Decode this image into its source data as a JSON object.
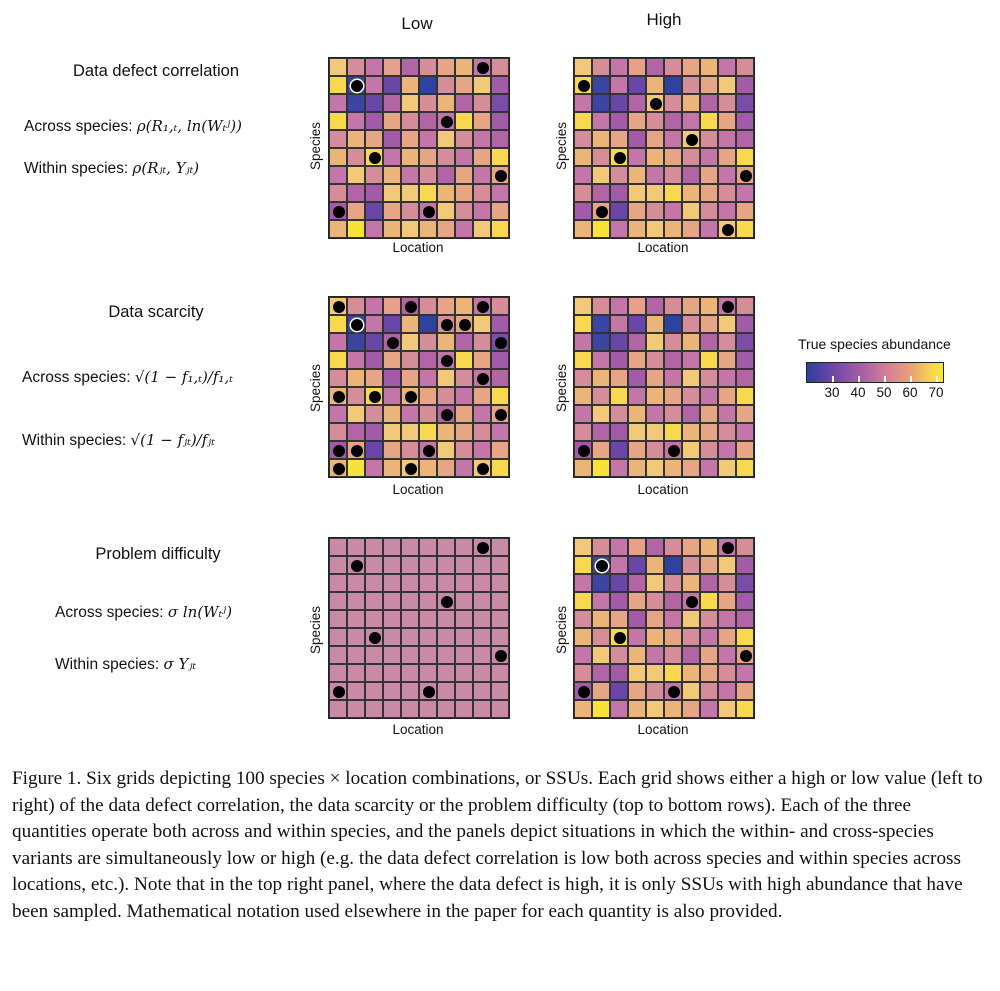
{
  "columns": {
    "low": "Low",
    "high": "High"
  },
  "rows": [
    {
      "title": "Data defect correlation",
      "across_label": "Across species: ",
      "across_math": "ρ(R₁,ₜ, ln(Wₜʲ))",
      "within_label": "Within species: ",
      "within_math": "ρ(Rⱼₜ, Yⱼₜ)"
    },
    {
      "title": "Data scarcity",
      "across_label": "Across species: ",
      "across_math": "√(1 − f₁,ₜ)/f₁,ₜ",
      "within_label": "Within species: ",
      "within_math": "√(1 − fⱼₜ)/fⱼₜ"
    },
    {
      "title": "Problem difficulty",
      "across_label": "Across species: ",
      "across_math": "σ ln(Wₜʲ)",
      "within_label": "Within species: ",
      "within_math": "σ Yⱼₜ"
    }
  ],
  "axis": {
    "x": "Location",
    "y": "Species"
  },
  "legend": {
    "title": "True species abundance",
    "ticks": [
      "30",
      "40",
      "50",
      "60",
      "70"
    ],
    "colors": [
      "#2e3fa0",
      "#6a46a8",
      "#a15ba8",
      "#d57d98",
      "#eda473",
      "#f7d84e"
    ]
  },
  "grids": {
    "base_colors": [
      [
        "#f2c879",
        "#d68d9a",
        "#c576a8",
        "#e59f8b",
        "#b265a4",
        "#d68d9a",
        "#e6a585",
        "#ebb57a",
        "#c576a8",
        "#d68d9a"
      ],
      [
        "#f7d84e",
        "#3b44a3",
        "#c576a8",
        "#6a46a8",
        "#ebb57a",
        "#2f41a1",
        "#d68d9a",
        "#e6a585",
        "#f2c879",
        "#a15ba8"
      ],
      [
        "#c576a8",
        "#3b44a3",
        "#6a46a8",
        "#b265a4",
        "#f2c879",
        "#d68d9a",
        "#ebb57a",
        "#b265a4",
        "#d68d9a",
        "#7b4ca8"
      ],
      [
        "#f7d84e",
        "#c576a8",
        "#a15ba8",
        "#e6a585",
        "#d68d9a",
        "#b265a4",
        "#c576a8",
        "#f7d84e",
        "#e6a585",
        "#a15ba8"
      ],
      [
        "#d68d9a",
        "#ebb57a",
        "#e6a585",
        "#a15ba8",
        "#e6a585",
        "#c576a8",
        "#f2c879",
        "#d68d9a",
        "#c576a8",
        "#b265a4"
      ],
      [
        "#ebb57a",
        "#d68d9a",
        "#f7d84e",
        "#c576a8",
        "#ebb57a",
        "#e6a585",
        "#d68d9a",
        "#c576a8",
        "#e6a585",
        "#f7d84e"
      ],
      [
        "#c576a8",
        "#f2c879",
        "#d68d9a",
        "#ebb57a",
        "#c576a8",
        "#d68d9a",
        "#b265a4",
        "#e6a585",
        "#c576a8",
        "#e6a585"
      ],
      [
        "#d68d9a",
        "#b265a4",
        "#a15ba8",
        "#f2c879",
        "#f2c879",
        "#f7d84e",
        "#ebb57a",
        "#e6a585",
        "#d68d9a",
        "#c576a8"
      ],
      [
        "#a15ba8",
        "#e6a585",
        "#6a46a8",
        "#e6a585",
        "#d68d9a",
        "#c576a8",
        "#f2c879",
        "#d68d9a",
        "#c576a8",
        "#e6a585"
      ],
      [
        "#ebb57a",
        "#f7e23a",
        "#c576a8",
        "#ebb57a",
        "#f2c879",
        "#ebb57a",
        "#e6a585",
        "#c576a8",
        "#f2c879",
        "#f7d84e"
      ]
    ],
    "uniform_color": "#c88aa6",
    "samples": {
      "defect_low": [
        [
          0,
          8
        ],
        [
          1,
          1
        ],
        [
          3,
          6
        ],
        [
          5,
          2
        ],
        [
          6,
          9
        ],
        [
          8,
          0
        ],
        [
          8,
          5
        ]
      ],
      "defect_high": [
        [
          1,
          0
        ],
        [
          2,
          4
        ],
        [
          4,
          6
        ],
        [
          5,
          2
        ],
        [
          6,
          9
        ],
        [
          8,
          1
        ],
        [
          9,
          8
        ]
      ],
      "scarcity_low": [
        [
          0,
          0
        ],
        [
          0,
          4
        ],
        [
          0,
          8
        ],
        [
          1,
          1
        ],
        [
          1,
          6
        ],
        [
          1,
          7
        ],
        [
          2,
          3
        ],
        [
          2,
          9
        ],
        [
          3,
          6
        ],
        [
          4,
          8
        ],
        [
          5,
          0
        ],
        [
          5,
          2
        ],
        [
          5,
          4
        ],
        [
          6,
          6
        ],
        [
          6,
          9
        ],
        [
          8,
          0
        ],
        [
          8,
          1
        ],
        [
          8,
          5
        ],
        [
          9,
          0
        ],
        [
          9,
          4
        ],
        [
          9,
          8
        ]
      ],
      "scarcity_high": [
        [
          0,
          8
        ],
        [
          8,
          0
        ],
        [
          8,
          5
        ]
      ],
      "difficulty_low": [
        [
          0,
          8
        ],
        [
          1,
          1
        ],
        [
          3,
          6
        ],
        [
          5,
          2
        ],
        [
          6,
          9
        ],
        [
          8,
          0
        ],
        [
          8,
          5
        ]
      ],
      "difficulty_high": [
        [
          0,
          8
        ],
        [
          1,
          1
        ],
        [
          3,
          6
        ],
        [
          5,
          2
        ],
        [
          6,
          9
        ],
        [
          8,
          0
        ],
        [
          8,
          5
        ]
      ]
    }
  },
  "caption": "Figure 1. Six grids depicting 100 species × location combinations, or SSUs. Each grid shows either a high or low value (left to right) of the data defect correlation, the data scarcity or the problem difficulty (top to bottom rows). Each of the three quantities operate both across and within species, and the panels depict situations in which the within- and cross-species variants are simultaneously low or high (e.g. the data defect correlation is low both across species and within species across locations, etc.). Note that in the top right panel, where the data defect is high, it is only SSUs with high abundance that have been sampled. Mathematical notation used elsewhere in the paper for each quantity is also provided."
}
